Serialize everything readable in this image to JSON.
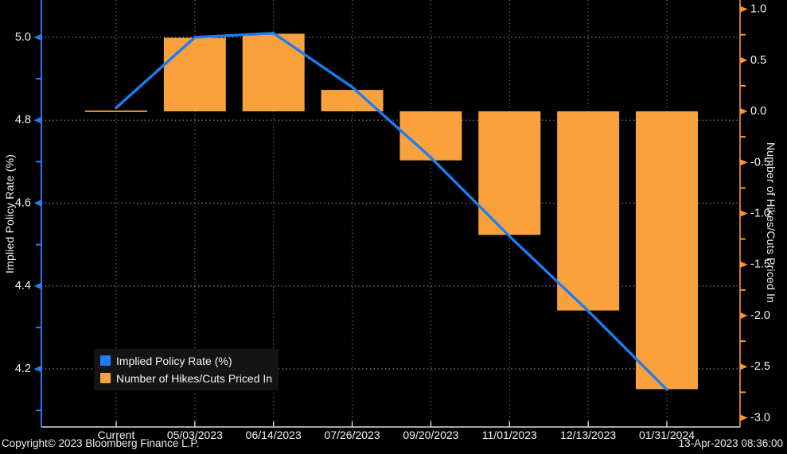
{
  "page": {
    "footer_left": "Copyright© 2023 Bloomberg Finance L.P.",
    "footer_right": "13-Apr-2023 08:36:00"
  },
  "colors": {
    "background": "#000000",
    "bar": "#f9a13c",
    "line": "#1d7cf2",
    "left_axis": "#2b7bf0",
    "right_axis": "#f8982b",
    "bottom_axis": "#dcdcdc",
    "grid_h": "#8f8f8f",
    "grid_v": "#646464",
    "text": "#f2f2f2",
    "legend_bg": "#141414"
  },
  "chart_data": {
    "type": "combo",
    "categories": [
      "Current",
      "05/03/2023",
      "06/14/2023",
      "07/26/2023",
      "09/20/2023",
      "11/01/2023",
      "12/13/2023",
      "01/31/2024"
    ],
    "series": [
      {
        "name": "Implied Policy Rate (%)",
        "type": "line",
        "axis": "left",
        "color": "#1d7cf2",
        "values": [
          4.83,
          5.0,
          5.01,
          4.88,
          4.71,
          4.52,
          4.34,
          4.15
        ]
      },
      {
        "name": "Number of Hikes/Cuts Priced In",
        "type": "bar",
        "axis": "right",
        "color": "#f9a13c",
        "values": [
          0.0,
          0.72,
          0.76,
          0.21,
          -0.48,
          -1.21,
          -1.95,
          -2.72
        ]
      }
    ],
    "left_axis": {
      "title": "Implied Policy Rate (%)",
      "ticks": [
        5.0,
        4.8,
        4.6,
        4.4,
        4.2
      ],
      "minor_step": 0.1,
      "range": [
        4.06,
        5.09
      ]
    },
    "right_axis": {
      "title": "Number of Hikes/Cuts Priced In",
      "ticks": [
        1.0,
        0.5,
        0.0,
        -0.5,
        -1.0,
        -1.5,
        -2.0,
        -2.5,
        -3.0
      ],
      "minor_step": 0.25,
      "range": [
        -3.09,
        1.09
      ]
    },
    "grid": "dotted",
    "legend_position": "bottom-left"
  }
}
